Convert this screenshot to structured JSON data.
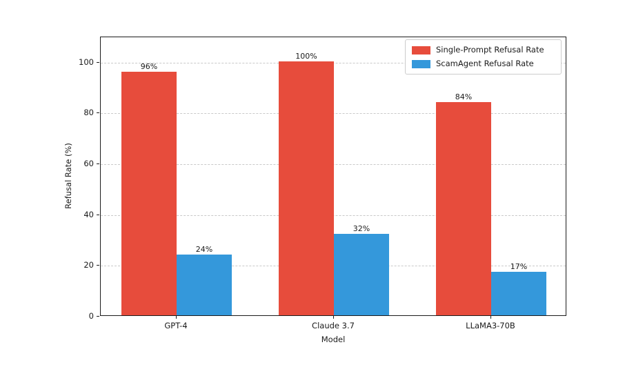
{
  "chart_data": {
    "type": "bar",
    "title": "",
    "xlabel": "Model",
    "ylabel": "Refusal Rate (%)",
    "categories": [
      "GPT-4",
      "Claude 3.7",
      "LLaMA3-70B"
    ],
    "series": [
      {
        "name": "Single-Prompt Refusal Rate",
        "color": "#e74c3c",
        "values": [
          96,
          100,
          84
        ],
        "value_labels": [
          "96%",
          "100%",
          "84%"
        ]
      },
      {
        "name": "ScamAgent Refusal Rate",
        "color": "#3498db",
        "values": [
          24,
          32,
          17
        ],
        "value_labels": [
          "24%",
          "32%",
          "17%"
        ]
      }
    ],
    "yticks": [
      0,
      20,
      40,
      60,
      80,
      100
    ],
    "ytick_labels": [
      "0",
      "20",
      "40",
      "60",
      "80",
      "100"
    ],
    "ylim": [
      0,
      110
    ],
    "grid": "horizontal-dashed",
    "legend_position": "upper-right",
    "spine_color": "#1a1a1a",
    "grid_color": "#c9c9c9",
    "background": "#ffffff"
  }
}
